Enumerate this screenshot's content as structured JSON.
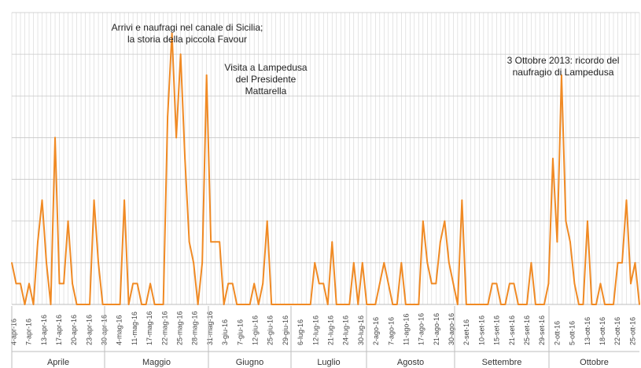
{
  "chart_data": {
    "type": "line",
    "title": "",
    "xlabel": "",
    "ylabel": "",
    "y_tick_labels_shown": false,
    "grid": true,
    "legend": "none",
    "series_color": "#f08a24",
    "grid_color": "#d4d4d4",
    "ylim": [
      0,
      14
    ],
    "series": [
      {
        "values": [
          2,
          1,
          1,
          0,
          1,
          0,
          3,
          5,
          2,
          0,
          8,
          1,
          1,
          4,
          1,
          0,
          0,
          0,
          0,
          5,
          2,
          0,
          0,
          0,
          0,
          0,
          5,
          0,
          1,
          1,
          0,
          0,
          1,
          0,
          0,
          0,
          9,
          13,
          8,
          12,
          7,
          3,
          2,
          0,
          2,
          11,
          3,
          3,
          3,
          0,
          1,
          1,
          0,
          0,
          0,
          0,
          1,
          0,
          1,
          4,
          0,
          0,
          0,
          0,
          0,
          0,
          0,
          0,
          0,
          0,
          2,
          1,
          1,
          0,
          3,
          0,
          0,
          0,
          0,
          2,
          0,
          2,
          0,
          0,
          0,
          1,
          2,
          1,
          0,
          0,
          2,
          0,
          0,
          0,
          0,
          4,
          2,
          1,
          1,
          3,
          4,
          2,
          1,
          0,
          5,
          0,
          0,
          0,
          0,
          0,
          0,
          1,
          1,
          0,
          0,
          1,
          1,
          0,
          0,
          0,
          2,
          0,
          0,
          0,
          1,
          7,
          3,
          11,
          4,
          3,
          1,
          0,
          0,
          4,
          0,
          0,
          1,
          0,
          0,
          0,
          2,
          2,
          5,
          1,
          2,
          0
        ]
      }
    ],
    "x_tick_labels": [
      "4-apr-16",
      "7-apr-16",
      "13-apr-16",
      "17-apr-16",
      "20-apr-16",
      "23-apr-16",
      "30-apr-16",
      "4-mag-16",
      "11-mag-16",
      "17-mag-16",
      "22-mag-16",
      "25-mag-16",
      "28-mag-16",
      "31-mag-16",
      "3-giu-16",
      "7-giu-16",
      "12-giu-16",
      "25-giu-16",
      "29-giu-16",
      "6-lug-16",
      "12-lug-16",
      "21-lug-16",
      "24-lug-16",
      "30-lug-16",
      "2-ago-16",
      "7-ago-16",
      "11-ago-16",
      "17-ago-16",
      "21-ago-16",
      "30-ago-16",
      "2-set-16",
      "10-set-16",
      "15-set-16",
      "21-set-16",
      "25-set-16",
      "29-set-16",
      "2-ott-16",
      "5-ott-16",
      "13-ott-16",
      "18-ott-16",
      "22-ott-16",
      "25-ott-16"
    ],
    "months": [
      "Aprile",
      "Maggio",
      "Giugno",
      "Luglio",
      "Agosto",
      "Settembre",
      "Ottobre"
    ],
    "annotations": [
      {
        "line1": "Arrivi e naufragi nel canale di Sicilia;",
        "line2": "la storia della piccola Favour",
        "line3": ""
      },
      {
        "line1": "Visita a Lampedusa",
        "line2": "del Presidente",
        "line3": "Mattarella"
      },
      {
        "line1": "3 Ottobre 2013: ricordo del",
        "line2": "naufragio di Lampedusa",
        "line3": ""
      }
    ]
  }
}
